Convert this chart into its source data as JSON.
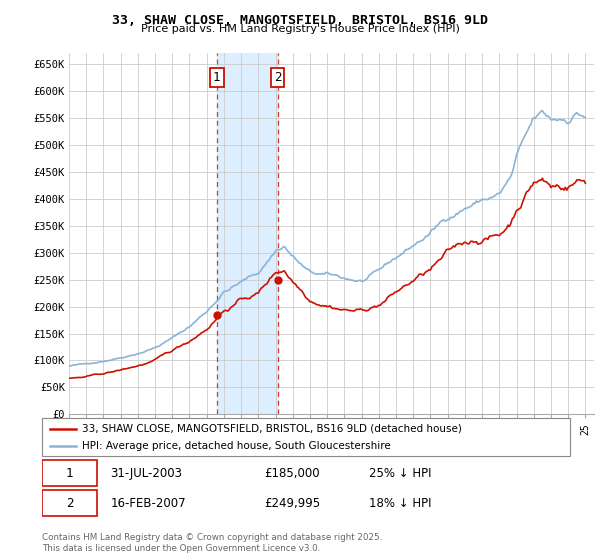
{
  "title": "33, SHAW CLOSE, MANGOTSFIELD, BRISTOL, BS16 9LD",
  "subtitle": "Price paid vs. HM Land Registry's House Price Index (HPI)",
  "ylabel_ticks": [
    "£0",
    "£50K",
    "£100K",
    "£150K",
    "£200K",
    "£250K",
    "£300K",
    "£350K",
    "£400K",
    "£450K",
    "£500K",
    "£550K",
    "£600K",
    "£650K"
  ],
  "ytick_values": [
    0,
    50000,
    100000,
    150000,
    200000,
    250000,
    300000,
    350000,
    400000,
    450000,
    500000,
    550000,
    600000,
    650000
  ],
  "hpi_color": "#89b4d8",
  "price_color": "#cc1100",
  "sale1_date": "31-JUL-2003",
  "sale1_price": 185000,
  "sale1_label": "1",
  "sale1_pct": "25% ↓ HPI",
  "sale2_date": "16-FEB-2007",
  "sale2_price": 249995,
  "sale2_label": "2",
  "sale2_pct": "18% ↓ HPI",
  "legend_house": "33, SHAW CLOSE, MANGOTSFIELD, BRISTOL, BS16 9LD (detached house)",
  "legend_hpi": "HPI: Average price, detached house, South Gloucestershire",
  "footnote": "Contains HM Land Registry data © Crown copyright and database right 2025.\nThis data is licensed under the Open Government Licence v3.0.",
  "sale1_x": 2003.58,
  "sale2_x": 2007.12,
  "xmin": 1995.0,
  "xmax": 2025.5,
  "ymin": 0,
  "ymax": 670000,
  "shade_color": "#ddeeff",
  "background_color": "#ffffff"
}
